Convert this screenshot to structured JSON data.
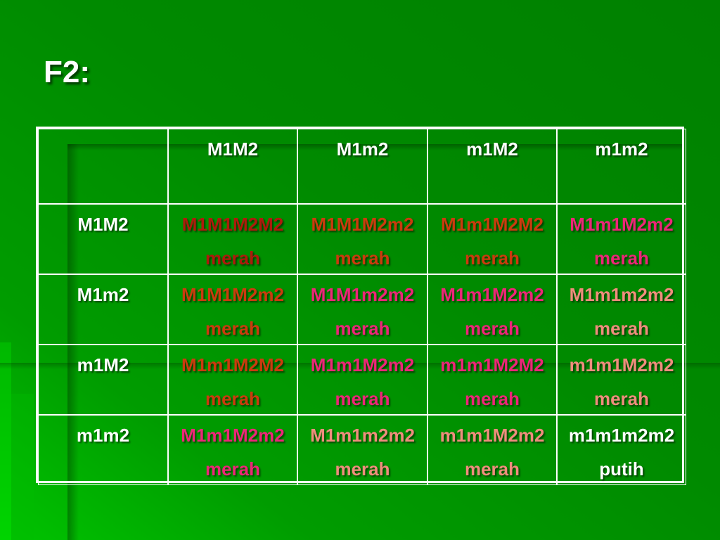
{
  "slide": {
    "title": "F2:"
  },
  "colors": {
    "background_green": "#008a00",
    "background_lime_accent": "#00c400",
    "table_border": "#ffffff",
    "header_text": "#ffffff",
    "phenotype_4_dominant": "#ae1a0c",
    "phenotype_3_dominant": "#cc3a0e",
    "phenotype_2_dominant": "#ee2578",
    "phenotype_1_dominant": "#f08d7d",
    "phenotype_0_dominant": "#ffffff"
  },
  "table": {
    "column_headers": [
      "M1M2",
      "M1m2",
      "m1M2",
      "m1m2"
    ],
    "row_headers": [
      "M1M2",
      "M1m2",
      "m1M2",
      "m1m2"
    ],
    "cells": [
      [
        {
          "genotype": "M1M1M2M2",
          "phenotype": "merah",
          "color": "#ae1a0c"
        },
        {
          "genotype": "M1M1M2m2",
          "phenotype": "merah",
          "color": "#cc3a0e"
        },
        {
          "genotype": "M1m1M2M2",
          "phenotype": "merah",
          "color": "#cc3a0e"
        },
        {
          "genotype": "M1m1M2m2",
          "phenotype": "merah",
          "color": "#ee2578"
        }
      ],
      [
        {
          "genotype": "M1M1M2m2",
          "phenotype": "merah",
          "color": "#cc3a0e"
        },
        {
          "genotype": "M1M1m2m2",
          "phenotype": "merah",
          "color": "#ee2578"
        },
        {
          "genotype": "M1m1M2m2",
          "phenotype": "merah",
          "color": "#ee2578"
        },
        {
          "genotype": "M1m1m2m2",
          "phenotype": "merah",
          "color": "#f08d7d"
        }
      ],
      [
        {
          "genotype": "M1m1M2M2",
          "phenotype": "merah",
          "color": "#cc3a0e"
        },
        {
          "genotype": "M1m1M2m2",
          "phenotype": "merah",
          "color": "#ee2578"
        },
        {
          "genotype": "m1m1M2M2",
          "phenotype": "merah",
          "color": "#ee2578"
        },
        {
          "genotype": "m1m1M2m2",
          "phenotype": "merah",
          "color": "#f08d7d"
        }
      ],
      [
        {
          "genotype": "M1m1M2m2",
          "phenotype": "merah",
          "color": "#ee2578"
        },
        {
          "genotype": "M1m1m2m2",
          "phenotype": "merah",
          "color": "#f08d7d"
        },
        {
          "genotype": "m1m1M2m2",
          "phenotype": "merah",
          "color": "#f08d7d"
        },
        {
          "genotype": "m1m1m2m2",
          "phenotype": "putih",
          "color": "#ffffff"
        }
      ]
    ]
  }
}
